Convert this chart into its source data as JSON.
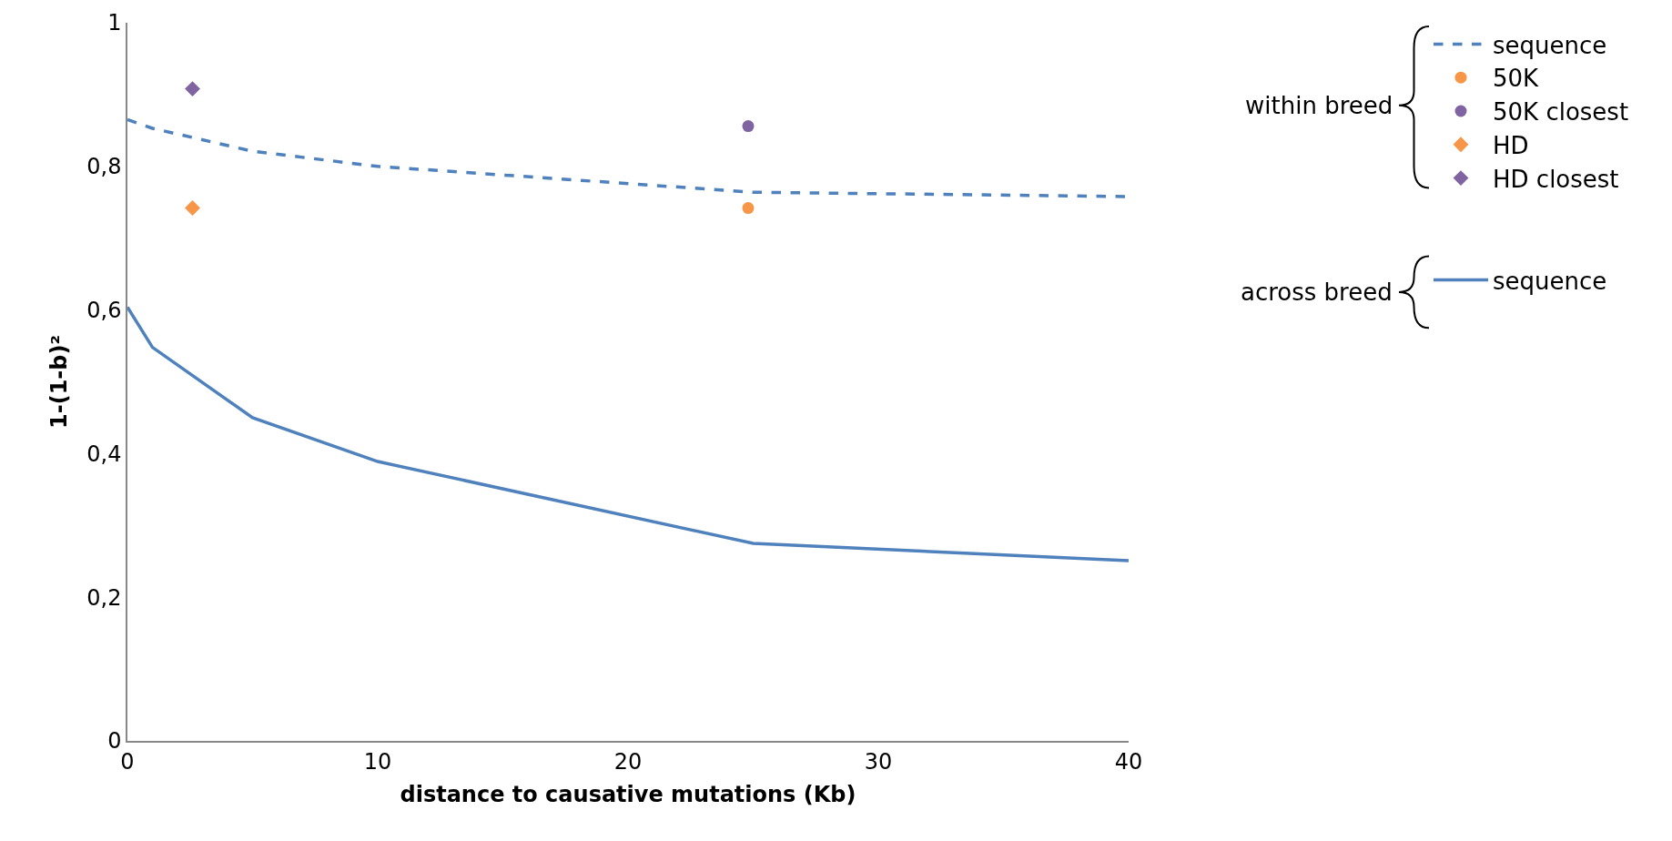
{
  "chart_data": {
    "type": "line",
    "xlabel": "distance to causative mutations (Kb)",
    "ylabel": "1-(1-b)²",
    "xlim": [
      0,
      40
    ],
    "xticks": [
      0,
      10,
      20,
      30,
      40
    ],
    "ylim": [
      0,
      1
    ],
    "yticks": [
      {
        "value": 0,
        "label": "0"
      },
      {
        "value": 0.2,
        "label": "0,2"
      },
      {
        "value": 0.4,
        "label": "0,4"
      },
      {
        "value": 0.6,
        "label": "0,6"
      },
      {
        "value": 0.8,
        "label": "0,8"
      },
      {
        "value": 1,
        "label": "1"
      }
    ],
    "legend": "right",
    "annotations": [
      "within breed",
      "across breed"
    ],
    "series": [
      {
        "name": "sequence",
        "line_style": "dashed",
        "marker": "none",
        "color": "#4f81bd",
        "x": [
          0,
          1,
          5,
          10,
          25,
          40
        ],
        "values": [
          0.865,
          0.853,
          0.821,
          0.8,
          0.764,
          0.758
        ]
      },
      {
        "name": "50K",
        "type": "scatter",
        "marker": "circle",
        "color": "#f79646",
        "x": [
          24.8
        ],
        "values": [
          0.742
        ]
      },
      {
        "name": "50K closest",
        "type": "scatter",
        "marker": "circle",
        "color": "#8064a2",
        "x": [
          24.8
        ],
        "values": [
          0.856
        ]
      },
      {
        "name": "HD",
        "type": "scatter",
        "marker": "diamond",
        "color": "#f79646",
        "x": [
          2.6
        ],
        "values": [
          0.742
        ]
      },
      {
        "name": "HD closest",
        "type": "scatter",
        "marker": "diamond",
        "color": "#8064a2",
        "x": [
          2.6
        ],
        "values": [
          0.908
        ]
      },
      {
        "name": "sequence",
        "line_style": "solid",
        "marker": "none",
        "color": "#4f81bd",
        "x": [
          0,
          1,
          5,
          10,
          25,
          40
        ],
        "values": [
          0.604,
          0.548,
          0.45,
          0.389,
          0.275,
          0.251
        ]
      }
    ]
  }
}
